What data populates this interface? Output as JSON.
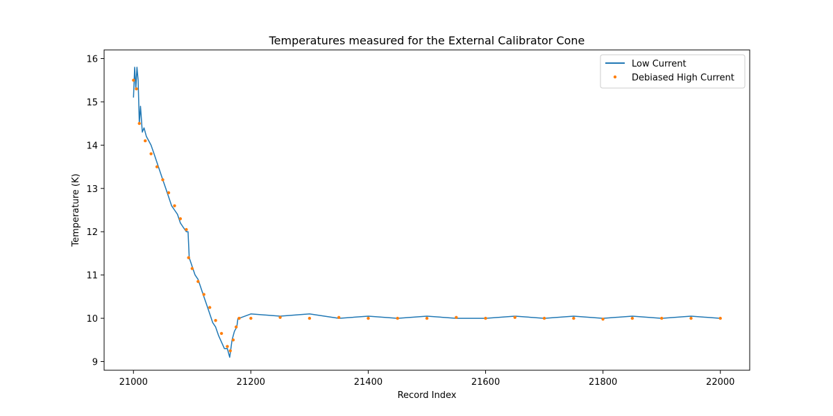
{
  "chart_data": {
    "type": "line",
    "title": "Temperatures measured for the External Calibrator Cone",
    "xlabel": "Record Index",
    "ylabel": "Temperature (K)",
    "xlim": [
      20950,
      22050
    ],
    "ylim": [
      8.8,
      16.2
    ],
    "xticks": [
      21000,
      21200,
      21400,
      21600,
      21800,
      22000
    ],
    "yticks": [
      9,
      10,
      11,
      12,
      13,
      14,
      15,
      16
    ],
    "grid": false,
    "legend_position": "top-right",
    "series": [
      {
        "name": "Low Current",
        "style": "line",
        "color": "#1f77b4",
        "x": [
          21000,
          21002,
          21004,
          21006,
          21008,
          21010,
          21012,
          21015,
          21018,
          21022,
          21026,
          21030,
          21035,
          21040,
          21045,
          21050,
          21055,
          21060,
          21065,
          21070,
          21075,
          21080,
          21085,
          21090,
          21093,
          21095,
          21100,
          21105,
          21110,
          21115,
          21120,
          21125,
          21130,
          21135,
          21140,
          21145,
          21150,
          21155,
          21160,
          21164,
          21168,
          21172,
          21176,
          21178,
          21180,
          21200,
          21250,
          21300,
          21350,
          21400,
          21450,
          21500,
          21550,
          21600,
          21650,
          21700,
          21750,
          21800,
          21850,
          21900,
          21950,
          22000
        ],
        "y": [
          15.1,
          15.8,
          15.3,
          15.8,
          15.5,
          14.5,
          14.9,
          14.3,
          14.4,
          14.2,
          14.1,
          14.0,
          13.8,
          13.6,
          13.4,
          13.2,
          13.0,
          12.8,
          12.6,
          12.5,
          12.4,
          12.2,
          12.1,
          12.0,
          12.0,
          11.4,
          11.2,
          11.0,
          10.9,
          10.7,
          10.5,
          10.3,
          10.1,
          9.9,
          9.8,
          9.6,
          9.45,
          9.3,
          9.3,
          9.1,
          9.5,
          9.7,
          9.8,
          10.0,
          10.0,
          10.1,
          10.05,
          10.1,
          10.0,
          10.05,
          10.0,
          10.05,
          10.0,
          10.0,
          10.05,
          10.0,
          10.05,
          10.0,
          10.05,
          10.0,
          10.05,
          10.0
        ]
      },
      {
        "name": "Debiased High Current",
        "style": "scatter",
        "color": "#ff7f0e",
        "x": [
          21000,
          21005,
          21010,
          21020,
          21030,
          21040,
          21050,
          21060,
          21070,
          21080,
          21090,
          21094,
          21100,
          21110,
          21120,
          21130,
          21140,
          21150,
          21160,
          21165,
          21170,
          21175,
          21180,
          21200,
          21250,
          21300,
          21350,
          21400,
          21450,
          21500,
          21550,
          21600,
          21650,
          21700,
          21750,
          21800,
          21850,
          21900,
          21950,
          22000
        ],
        "y": [
          15.5,
          15.3,
          14.5,
          14.1,
          13.8,
          13.5,
          13.2,
          12.9,
          12.6,
          12.3,
          12.05,
          11.4,
          11.15,
          10.85,
          10.55,
          10.25,
          9.95,
          9.65,
          9.35,
          9.25,
          9.5,
          9.8,
          10.0,
          10.0,
          10.02,
          10.0,
          10.02,
          10.0,
          10.0,
          10.0,
          10.02,
          10.0,
          10.02,
          10.0,
          10.0,
          9.98,
          10.0,
          10.0,
          10.0,
          10.0
        ]
      }
    ]
  }
}
